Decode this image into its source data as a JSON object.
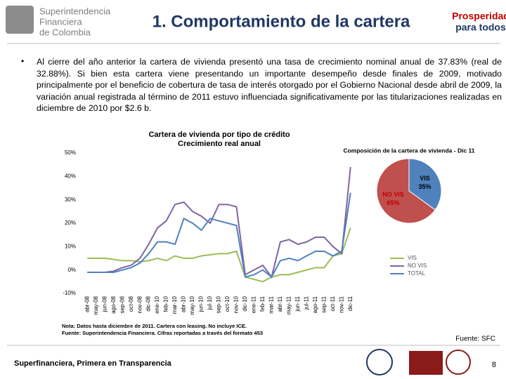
{
  "header": {
    "logo_left": [
      "Superintendencia",
      "Financiera",
      "de Colombia"
    ],
    "title": "1. Comportamiento de la cartera",
    "logo_right": [
      "Prosperidad",
      "para todos"
    ]
  },
  "body": "Al cierre del año anterior la cartera de vivienda presentó una tasa de crecimiento nominal anual de 37.83% (real de 32.88%). Si bien esta cartera viene presentando un importante desempeño desde finales de 2009, motivado principalmente por el beneficio de cobertura de tasa de interés otorgado por el Gobierno Nacional desde abril de 2009, la variación anual registrada al término de 2011 estuvo influenciada significativamente por las titularizaciones realizadas en diciembre de 2010 por $2.6 b.",
  "chart_data": [
    {
      "type": "line",
      "title": "Cartera de vivienda por tipo de crédito",
      "subtitle": "Crecimiento real anual",
      "categories": [
        "abr-08",
        "may-08",
        "jun-08",
        "ago-08",
        "sep-08",
        "oct-08",
        "nov-08",
        "dic-08",
        "ene-10",
        "feb-10",
        "mar-10",
        "abr-10",
        "may-10",
        "jun-10",
        "jul-10",
        "sep-10",
        "oct-10",
        "nov-10",
        "dic-10",
        "ene-11",
        "feb-11",
        "mar-11",
        "abr-11",
        "may-11",
        "jun-11",
        "jul-11",
        "ago-11",
        "sep-11",
        "oct-11",
        "nov-11",
        "dic-11"
      ],
      "series": [
        {
          "name": "VIS",
          "color": "#9bbb59",
          "values": [
            5,
            5,
            5,
            4.5,
            4,
            4,
            3.5,
            4,
            5,
            4,
            6,
            5,
            5,
            6,
            6.5,
            7,
            7,
            8,
            -3,
            -4,
            -5,
            -3,
            -2,
            -2,
            -1,
            0,
            1,
            1,
            6,
            7,
            18
          ]
        },
        {
          "name": "NO VIS",
          "color": "#8064a2",
          "values": [
            -1,
            -1,
            -1,
            -0.5,
            1,
            2,
            5,
            11,
            18,
            21,
            28,
            29,
            25,
            23,
            20,
            28,
            28,
            27,
            -2,
            0,
            2,
            -3,
            12,
            13,
            11,
            12,
            14,
            14,
            10,
            7,
            44
          ]
        },
        {
          "name": "TOTAL",
          "color": "#4f81bd",
          "values": [
            -1,
            -1,
            -1,
            -1,
            0,
            1,
            3,
            7,
            12,
            12,
            11,
            22,
            20,
            17,
            22,
            21,
            20,
            19,
            -3,
            -2,
            0,
            -3,
            4,
            5,
            4,
            6,
            8,
            8,
            6,
            8,
            33
          ]
        }
      ],
      "ylim": [
        -10,
        50
      ],
      "yticks": [
        {
          "value": -10,
          "label": "-10%"
        },
        {
          "value": 0,
          "label": "0%"
        },
        {
          "value": 10,
          "label": "10%"
        },
        {
          "value": 20,
          "label": "20%"
        },
        {
          "value": 30,
          "label": "30%"
        },
        {
          "value": 40,
          "label": "40%"
        },
        {
          "value": 50,
          "label": "50%"
        }
      ],
      "legend": "lower right",
      "notes": [
        "Nota: Datos hasta diciembre de 2011. Cartera con leasing. No incluye ICE.",
        "Fuente: Superintendencia Financiera. Cifras reportadas a través del formato 453"
      ]
    },
    {
      "type": "pie",
      "title": "Composición de la cartera de vivienda - Dic 11",
      "categories": [
        "VIS",
        "NO VIS"
      ],
      "values": [
        35,
        65
      ],
      "value_labels": [
        "35%",
        "65%"
      ],
      "colors": [
        "#4f81bd",
        "#c0504d"
      ]
    }
  ],
  "source": "Fuente: SFC",
  "footer": {
    "slogan": "Superfinanciera, Primera en Transparencia",
    "page": "8"
  }
}
